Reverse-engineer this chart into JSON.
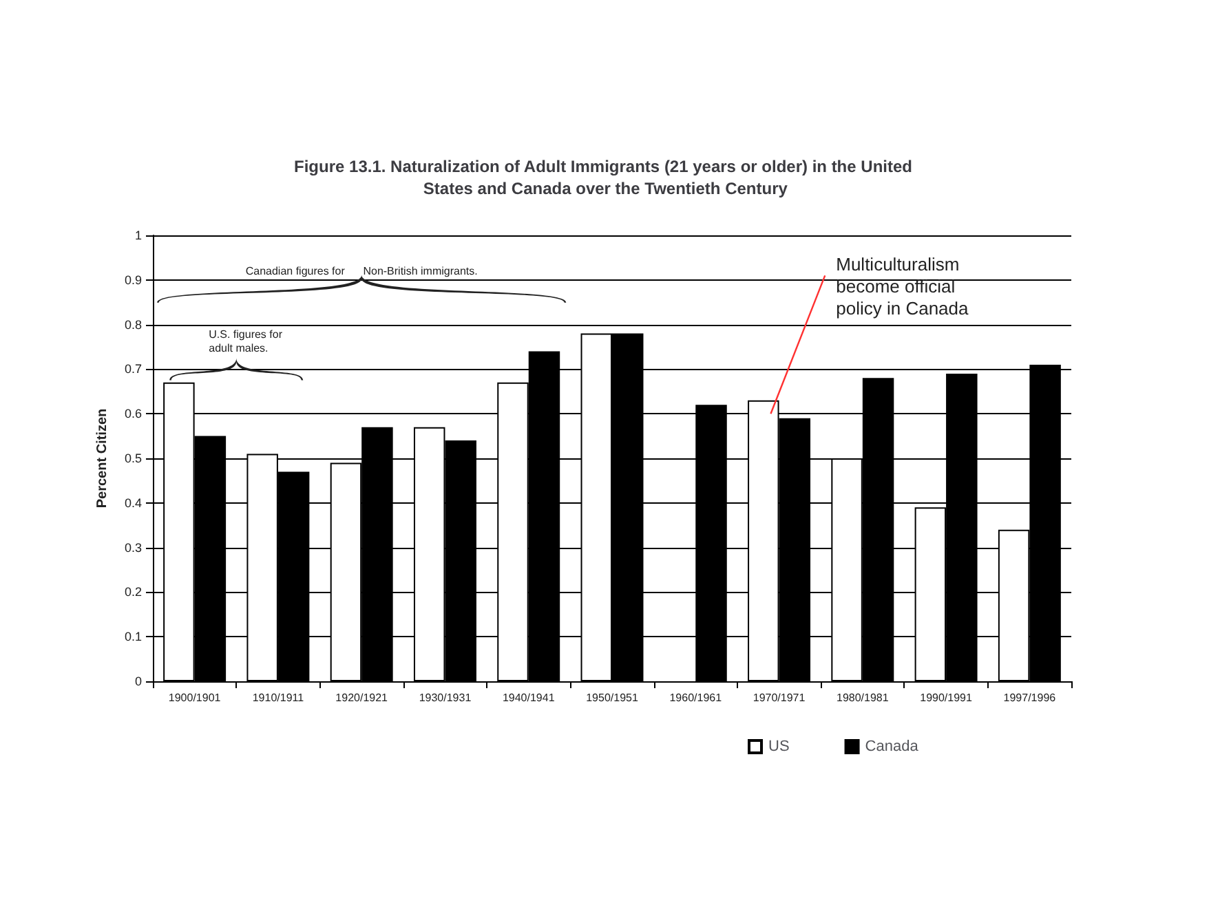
{
  "chart_data": {
    "type": "bar",
    "title": "Figure 13.1. Naturalization of Adult Immigrants (21 years or older) in the United States and Canada over the Twentieth Century",
    "ylabel": "Percent Citizen",
    "categories": [
      "1900/1901",
      "1910/1911",
      "1920/1921",
      "1930/1931",
      "1940/1941",
      "1950/1951",
      "1960/1961",
      "1970/1971",
      "1980/1981",
      "1990/1991",
      "1997/1996"
    ],
    "series": [
      {
        "name": "US",
        "color": "#ffffff",
        "values": [
          0.67,
          0.51,
          0.49,
          0.57,
          0.67,
          0.78,
          null,
          0.63,
          0.5,
          0.39,
          0.34
        ]
      },
      {
        "name": "Canada",
        "color": "#000000",
        "values": [
          0.55,
          0.47,
          0.57,
          0.54,
          0.74,
          0.78,
          0.62,
          0.59,
          0.68,
          0.69,
          0.71
        ]
      }
    ],
    "annotations": [
      "Canadian figures for      Non-British immigrants.",
      "U.S. figures for adult males.",
      "Multiculturalism become official policy in Canada"
    ],
    "ylim": [
      0,
      1
    ],
    "yticks": [
      0,
      0.1,
      0.2,
      0.3,
      0.4,
      0.5,
      0.6,
      0.7,
      0.8,
      0.9,
      1
    ],
    "grid": "y",
    "legend": "bottom"
  }
}
